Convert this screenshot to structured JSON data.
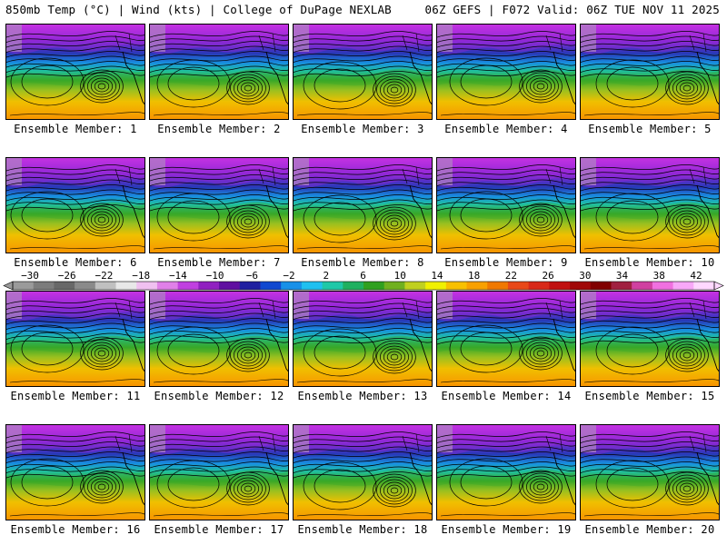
{
  "header": {
    "left": "850mb Temp (°C) | Wind (kts) | College of DuPage NEXLAB",
    "right": "06Z GEFS | F072 Valid: 06Z TUE NOV 11 2025"
  },
  "member_label_prefix": "Ensemble Member: ",
  "members": [
    "1",
    "2",
    "3",
    "4",
    "5",
    "6",
    "7",
    "8",
    "9",
    "10",
    "11",
    "12",
    "13",
    "14",
    "15",
    "16",
    "17",
    "18",
    "19",
    "20"
  ],
  "colorbar": {
    "tick_labels": [
      "-30",
      "-26",
      "-22",
      "-18",
      "-14",
      "-10",
      "-6",
      "-2",
      "2",
      "6",
      "10",
      "14",
      "18",
      "22",
      "26",
      "30",
      "34",
      "38",
      "42"
    ],
    "colors": [
      "#9a9a9a",
      "#7c7c7c",
      "#686868",
      "#8a8a8a",
      "#c0c0c0",
      "#e8e8e8",
      "#f0c0f0",
      "#e080e8",
      "#c040e0",
      "#9020c0",
      "#6010a0",
      "#2020a0",
      "#1048d0",
      "#1890e8",
      "#20c0f0",
      "#20c8a8",
      "#20b060",
      "#30a020",
      "#70b020",
      "#c0d020",
      "#f0f000",
      "#f8c000",
      "#f8a000",
      "#f07800",
      "#e84818",
      "#d82818",
      "#c01010",
      "#a00808",
      "#800000",
      "#a02040",
      "#d040a0",
      "#f070e0",
      "#f8a8f8",
      "#ffd8ff"
    ]
  }
}
